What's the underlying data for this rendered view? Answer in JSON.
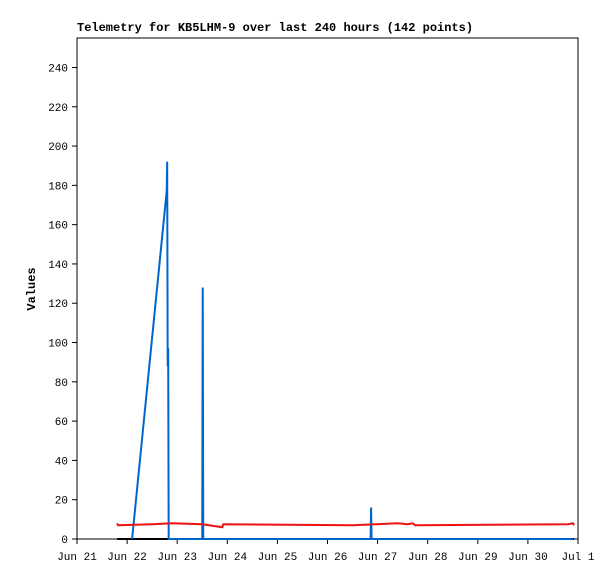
{
  "chart_data": {
    "type": "line",
    "title": "Telemetry for KB5LHM-9 over last 240 hours (142 points)",
    "y_label": "Values",
    "xlim": [
      0,
      10
    ],
    "xticks": [
      {
        "value": 0,
        "label": "Jun 21"
      },
      {
        "value": 1,
        "label": "Jun 22"
      },
      {
        "value": 2,
        "label": "Jun 23"
      },
      {
        "value": 3,
        "label": "Jun 24"
      },
      {
        "value": 4,
        "label": "Jun 25"
      },
      {
        "value": 5,
        "label": "Jun 26"
      },
      {
        "value": 6,
        "label": "Jun 27"
      },
      {
        "value": 7,
        "label": "Jun 28"
      },
      {
        "value": 8,
        "label": "Jun 29"
      },
      {
        "value": 9,
        "label": "Jun 30"
      },
      {
        "value": 10,
        "label": "Jul 1"
      }
    ],
    "ylim": [
      0,
      255
    ],
    "yticks": [
      0,
      20,
      40,
      60,
      80,
      100,
      120,
      140,
      160,
      180,
      200,
      220,
      240
    ],
    "grid": false,
    "series": [
      {
        "color": "#000000",
        "x": [
          0.8,
          9.92
        ],
        "values": [
          0,
          0
        ]
      },
      {
        "color": "#0066cc",
        "x": [
          1.1,
          1.79,
          1.8,
          1.81,
          1.82,
          1.83,
          2.5,
          2.51,
          2.52,
          5.86,
          5.87,
          5.88,
          9.9
        ],
        "values": [
          0,
          177,
          192,
          88,
          97,
          0,
          0,
          128,
          0,
          0,
          16,
          0,
          0
        ]
      },
      {
        "color": "#ee1111",
        "x": [
          0.8,
          0.82,
          1.5,
          1.9,
          2.5,
          2.9,
          2.92,
          5.5,
          6.4,
          6.6,
          6.7,
          6.75,
          9.8,
          9.9,
          9.92
        ],
        "values": [
          8,
          7,
          7.5,
          8,
          7.5,
          6,
          7.5,
          7,
          8,
          7.5,
          8,
          7,
          7.5,
          8,
          7
        ]
      }
    ]
  }
}
